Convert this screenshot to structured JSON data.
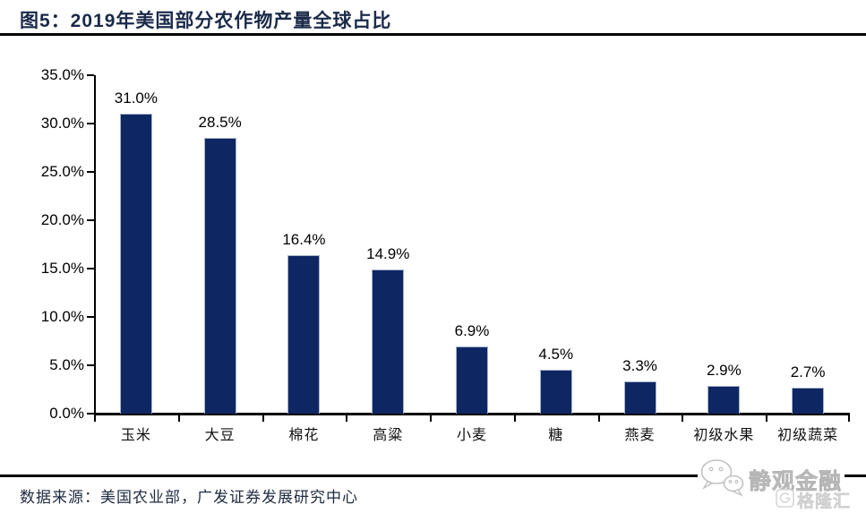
{
  "page": {
    "title": "图5：2019年美国部分农作物产量全球占比"
  },
  "chart_data": {
    "type": "bar",
    "title": "2019年美国部分农作物产量全球占比",
    "categories": [
      "玉米",
      "大豆",
      "棉花",
      "高粱",
      "小麦",
      "糖",
      "燕麦",
      "初级水果",
      "初级蔬菜"
    ],
    "values": [
      31.0,
      28.5,
      16.4,
      14.9,
      6.9,
      4.5,
      3.3,
      2.9,
      2.7
    ],
    "value_labels": [
      "31.0%",
      "28.5%",
      "16.4%",
      "14.9%",
      "6.9%",
      "4.5%",
      "3.3%",
      "2.9%",
      "2.7%"
    ],
    "xlabel": "",
    "ylabel": "",
    "ylim": [
      0,
      35
    ],
    "ytick_step": 5,
    "ytick_labels": [
      "0.0%",
      "5.0%",
      "10.0%",
      "15.0%",
      "20.0%",
      "25.0%",
      "30.0%",
      "35.0%"
    ],
    "grid": false,
    "legend": null,
    "bar_color": "#0E2763",
    "bar_edge_color": "#A8B4CE",
    "axis_color": "#000000",
    "text_color": "#000000"
  },
  "footer": {
    "source": "数据来源：美国农业部，广发证券发展研究中心",
    "watermarks": {
      "wechat_name": "静观金融",
      "platform_name": "格隆汇"
    }
  },
  "colors": {
    "title": "#1B2A4A",
    "rule": "#000000",
    "source_text": "#1F2B40",
    "watermark_light": "#BDBDBD",
    "watermark_lighter": "#D4D4D4"
  }
}
